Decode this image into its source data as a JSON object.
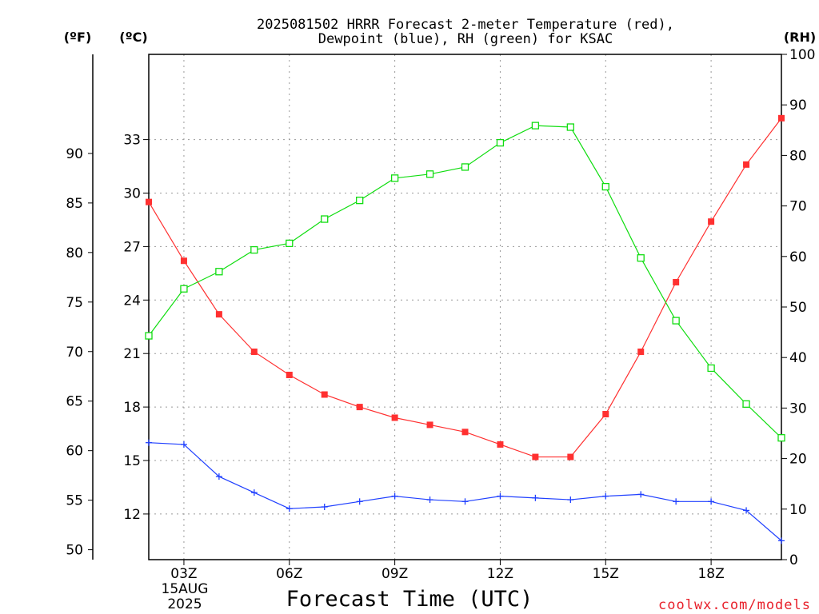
{
  "chart_data": {
    "type": "line",
    "title_lines": [
      "2025081502 HRRR Forecast 2-meter Temperature (red),",
      "Dewpoint (blue), RH (green) for KSAC"
    ],
    "xlabel": "Forecast Time (UTC)",
    "credit": "coolwx.com/models",
    "units": {
      "fahrenheit": "(ºF)",
      "celsius": "(ºC)",
      "rh": "(RH)"
    },
    "date_label_lines": [
      "15AUG",
      "2025"
    ],
    "x_ticks": [
      {
        "x": 3,
        "label": "03Z"
      },
      {
        "x": 6,
        "label": "06Z"
      },
      {
        "x": 9,
        "label": "09Z"
      },
      {
        "x": 12,
        "label": "12Z"
      },
      {
        "x": 15,
        "label": "15Z"
      },
      {
        "x": 18,
        "label": "18Z"
      }
    ],
    "xlim": [
      2,
      20
    ],
    "celsius_axis": {
      "ylim": [
        9.44,
        37.78
      ],
      "ticks": [
        12,
        15,
        18,
        21,
        24,
        27,
        30,
        33
      ]
    },
    "fahrenheit_axis": {
      "ylim": [
        49,
        100
      ],
      "ticks": [
        50,
        55,
        60,
        65,
        70,
        75,
        80,
        85,
        90
      ]
    },
    "rh_axis": {
      "ylim": [
        0,
        100
      ],
      "ticks": [
        0,
        10,
        20,
        30,
        40,
        50,
        60,
        70,
        80,
        90,
        100
      ]
    },
    "x": [
      2,
      3,
      4,
      5,
      6,
      7,
      8,
      9,
      10,
      11,
      12,
      13,
      14,
      15,
      16,
      17,
      18,
      19,
      20
    ],
    "series": [
      {
        "name": "Temperature (red)",
        "axis": "celsius",
        "color": "#ff3030",
        "marker": "filled-square",
        "values": [
          29.5,
          26.2,
          23.2,
          21.1,
          19.8,
          18.7,
          18.0,
          17.4,
          17.0,
          16.6,
          15.9,
          15.2,
          15.2,
          17.6,
          21.1,
          25.0,
          28.4,
          31.6,
          34.2
        ]
      },
      {
        "name": "Dewpoint (blue)",
        "axis": "celsius",
        "color": "#2040ff",
        "marker": "plus",
        "values": [
          16.0,
          15.9,
          14.1,
          13.2,
          12.3,
          12.4,
          12.7,
          13.0,
          12.8,
          12.7,
          13.0,
          12.9,
          12.8,
          13.0,
          13.1,
          12.7,
          12.7,
          12.2,
          10.5
        ]
      },
      {
        "name": "RH (green)",
        "axis": "rh",
        "color": "#10dd10",
        "marker": "open-square",
        "values": [
          44.3,
          53.6,
          57.0,
          61.3,
          62.6,
          67.4,
          71.1,
          75.5,
          76.3,
          77.7,
          82.5,
          85.9,
          85.6,
          73.8,
          59.7,
          47.3,
          37.9,
          30.8,
          24.1
        ]
      }
    ],
    "grid": true,
    "legend": "none"
  }
}
